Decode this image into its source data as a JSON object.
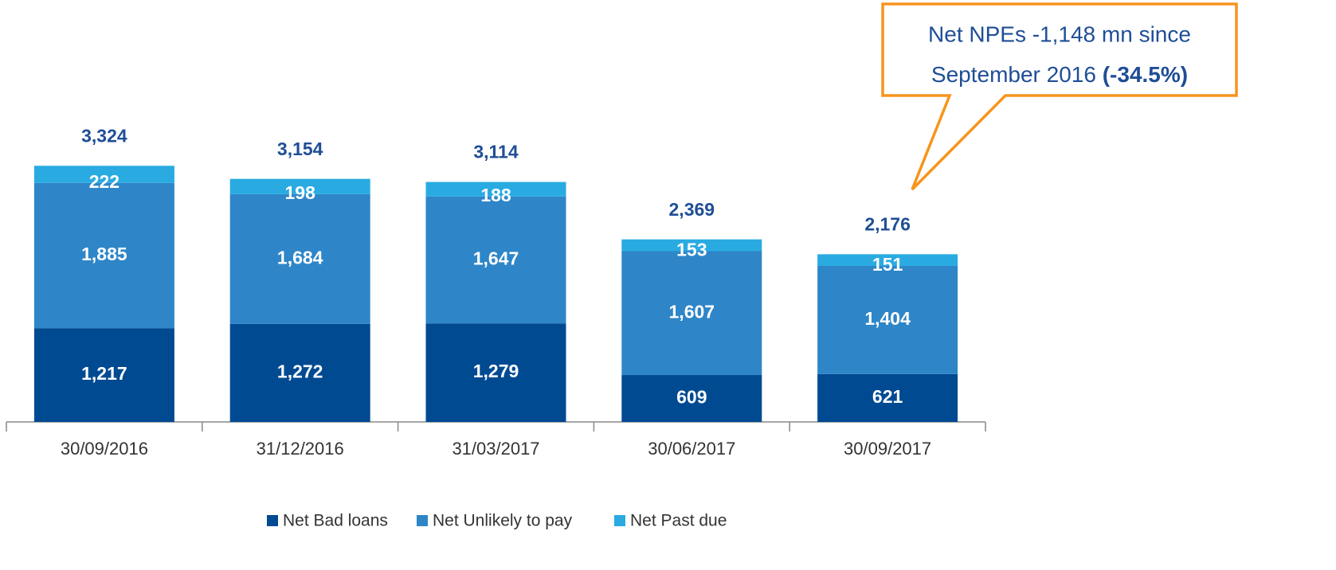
{
  "chart_data": {
    "type": "stacked_bar",
    "categories": [
      "30/09/2016",
      "31/12/2016",
      "31/03/2017",
      "30/06/2017",
      "30/09/2017"
    ],
    "series": [
      {
        "name": "Net Bad loans",
        "color": "#004a92",
        "values": [
          1217,
          1272,
          1279,
          609,
          621
        ],
        "value_labels": [
          "1,217",
          "1,272",
          "1,279",
          "609",
          "621"
        ]
      },
      {
        "name": "Net Unlikely to pay",
        "color": "#2e86c8",
        "values": [
          1885,
          1684,
          1647,
          1607,
          1404
        ],
        "value_labels": [
          "1,885",
          "1,684",
          "1,647",
          "1,607",
          "1,404"
        ]
      },
      {
        "name": "Net Past due",
        "color": "#29abe2",
        "values": [
          222,
          198,
          188,
          153,
          151
        ],
        "value_labels": [
          "222",
          "198",
          "188",
          "153",
          "151"
        ]
      }
    ],
    "totals": [
      3324,
      3154,
      3114,
      2369,
      2176
    ],
    "total_labels": [
      "3,324",
      "3,154",
      "3,114",
      "2,369",
      "2,176"
    ],
    "annotation": {
      "lines": [
        "Net NPEs -1,148 mn since",
        "September 2016"
      ],
      "highlight": "(-34.5%)",
      "color": "#f7941d"
    },
    "legend": "bottom"
  }
}
